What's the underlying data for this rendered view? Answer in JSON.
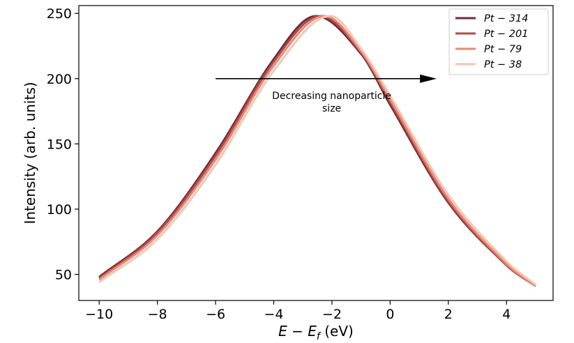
{
  "chart_data": {
    "type": "line",
    "xlabel": "E − E",
    "xlabel_subscript": "f",
    "xlabel_unit": " (eV)",
    "ylabel": "Intensity (arb. units)",
    "xlim": [
      -10.7,
      5.6
    ],
    "ylim": [
      30,
      256
    ],
    "x_ticks": [
      -10,
      -8,
      -6,
      -4,
      -2,
      0,
      2,
      4
    ],
    "x_tick_labels": [
      "−10",
      "−8",
      "−6",
      "−4",
      "−2",
      "0",
      "2",
      "4"
    ],
    "y_ticks": [
      50,
      100,
      150,
      200,
      250
    ],
    "y_tick_labels": [
      "50",
      "100",
      "150",
      "200",
      "250"
    ],
    "grid": false,
    "legend_position": "top-right",
    "series": [
      {
        "name": "Pt − 314",
        "color": "#6b2c3a",
        "peak_x": -2.55,
        "peak_y": 248,
        "x": [
          -10,
          -8,
          -6,
          -4,
          -2.55,
          -1,
          0,
          2,
          4,
          5
        ],
        "y": [
          48,
          83,
          143,
          215,
          248,
          219,
          180,
          105,
          57,
          41
        ]
      },
      {
        "name": "Pt − 201",
        "color": "#b5474b",
        "peak_x": -2.4,
        "peak_y": 248,
        "x": [
          -10,
          -8,
          -6,
          -4,
          -2.4,
          -1,
          0,
          2,
          4,
          5
        ],
        "y": [
          47,
          82,
          141,
          213,
          248,
          220,
          182,
          106,
          57,
          41
        ]
      },
      {
        "name": "Pt − 79",
        "color": "#e48a74",
        "peak_x": -2.25,
        "peak_y": 248,
        "x": [
          -10,
          -8,
          -6,
          -4,
          -2.25,
          -1,
          0,
          2,
          4,
          5
        ],
        "y": [
          46,
          80,
          138,
          210,
          248,
          221,
          184,
          108,
          58,
          41
        ]
      },
      {
        "name": "Pt − 38",
        "color": "#f2c6b5",
        "peak_x": -2.05,
        "peak_y": 248,
        "x": [
          -10,
          -8,
          -6,
          -4,
          -2.05,
          -1,
          0,
          2,
          4,
          5
        ],
        "y": [
          44,
          77,
          134,
          206,
          248,
          223,
          187,
          111,
          60,
          42
        ]
      }
    ],
    "annotation": {
      "lines": [
        "Decreasing nanoparticle",
        "size"
      ],
      "arrow_from": [
        -6,
        200
      ],
      "arrow_to": [
        1.6,
        200
      ]
    }
  }
}
